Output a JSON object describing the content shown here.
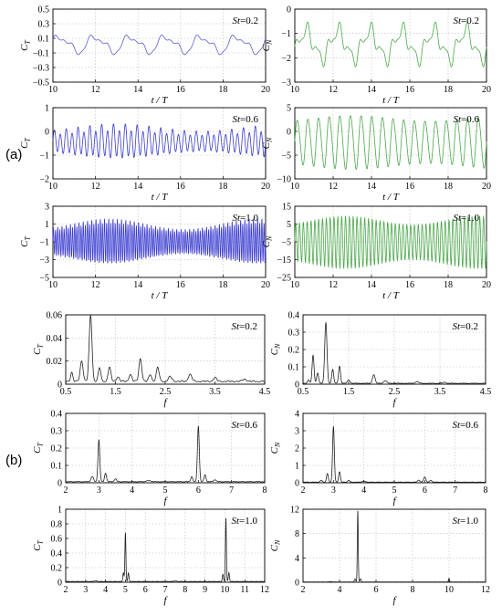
{
  "labels": {
    "a": "(a)",
    "b": "(b)"
  },
  "chart_data": [
    {
      "id": "a1l",
      "type": "line",
      "color": "#5b5bd6",
      "ylabel": "C",
      "ysub": "T",
      "xlabel": "t / T",
      "annotation": {
        "prefix": "St",
        "value": "=0.2"
      },
      "xlim": [
        10,
        20
      ],
      "ylim": [
        -0.5,
        0.5
      ],
      "xticks": [
        10,
        12,
        14,
        16,
        18,
        20
      ],
      "xtick_labels": [
        "10",
        "12",
        "14",
        "16",
        "18",
        "20"
      ],
      "yticks": [
        0.5,
        0.3,
        0.1,
        -0.1,
        -0.3,
        -0.5
      ],
      "ytick_labels": [
        "0.5",
        "0.3",
        "0.1",
        "−0.1",
        "−0.3",
        "−0.5"
      ],
      "signal": {
        "period": 1.6667,
        "baseline": 0.02,
        "components": [
          [
            0.1,
            1,
            0.3
          ],
          [
            0.045,
            2,
            1.2
          ],
          [
            0.02,
            4,
            0.2
          ]
        ],
        "env_amp": 0,
        "env_period": 7
      }
    },
    {
      "id": "a1r",
      "type": "line",
      "color": "#4aa84a",
      "ylabel": "C",
      "ysub": "N",
      "xlabel": "t / T",
      "annotation": {
        "prefix": "St",
        "value": "=0.2"
      },
      "xlim": [
        10,
        20
      ],
      "ylim": [
        -3,
        0
      ],
      "xticks": [
        10,
        12,
        14,
        16,
        18,
        20
      ],
      "xtick_labels": [
        "10",
        "12",
        "14",
        "16",
        "18",
        "20"
      ],
      "yticks": [
        0,
        -1,
        -2,
        -3
      ],
      "ytick_labels": [
        "0",
        "−1",
        "−2",
        "−3"
      ],
      "signal": {
        "period": 1.6667,
        "baseline": -1.45,
        "components": [
          [
            0.55,
            1,
            -0.6
          ],
          [
            0.3,
            3,
            0.4
          ],
          [
            0.12,
            5,
            1.0
          ]
        ],
        "env_amp": 0,
        "env_period": 7
      }
    },
    {
      "id": "a2l",
      "type": "line",
      "color": "#3b3bd0",
      "ylabel": "C",
      "ysub": "T",
      "xlabel": "t / T",
      "annotation": {
        "prefix": "St",
        "value": "=0.6"
      },
      "xlim": [
        10,
        20
      ],
      "ylim": [
        -2,
        1
      ],
      "xticks": [
        10,
        12,
        14,
        16,
        18,
        20
      ],
      "xtick_labels": [
        "10",
        "12",
        "14",
        "16",
        "18",
        "20"
      ],
      "yticks": [
        1,
        0,
        -1,
        -2
      ],
      "ytick_labels": [
        "1",
        "0",
        "−1",
        "−2"
      ],
      "signal": {
        "period": 0.5556,
        "baseline": -0.45,
        "components": [
          [
            0.5,
            2,
            0
          ],
          [
            0.12,
            1,
            0.5
          ]
        ],
        "env_amp": 0.25,
        "env_period": 8
      }
    },
    {
      "id": "a2r",
      "type": "line",
      "color": "#4aa84a",
      "ylabel": "C",
      "ysub": "N",
      "xlabel": "t / T",
      "annotation": {
        "prefix": "St",
        "value": "=0.6"
      },
      "xlim": [
        10,
        20
      ],
      "ylim": [
        -10,
        5
      ],
      "xticks": [
        10,
        12,
        14,
        16,
        18,
        20
      ],
      "xtick_labels": [
        "10",
        "12",
        "14",
        "16",
        "18",
        "20"
      ],
      "yticks": [
        5,
        0,
        -5,
        -10
      ],
      "ytick_labels": [
        "5",
        "0",
        "−5",
        "−10"
      ],
      "signal": {
        "period": 0.5556,
        "baseline": -2.2,
        "components": [
          [
            5.0,
            1,
            0
          ],
          [
            0.4,
            2,
            0.3
          ]
        ],
        "env_amp": 0.12,
        "env_period": 8
      }
    },
    {
      "id": "a3l",
      "type": "line",
      "color": "#3b3bd0",
      "ylabel": "C",
      "ysub": "T",
      "xlabel": "t / T",
      "annotation": {
        "prefix": "St",
        "value": "=1.0"
      },
      "xlim": [
        10,
        20
      ],
      "ylim": [
        -5,
        3
      ],
      "xticks": [
        10,
        12,
        14,
        16,
        18,
        20
      ],
      "xtick_labels": [
        "10",
        "12",
        "14",
        "16",
        "18",
        "20"
      ],
      "yticks": [
        3,
        1,
        -1,
        -3,
        -5
      ],
      "ytick_labels": [
        "3",
        "1",
        "−1",
        "−3",
        "−5"
      ],
      "signal": {
        "period": 1.0,
        "baseline": -1.0,
        "components": [
          [
            1.8,
            10,
            0
          ],
          [
            0.2,
            5,
            0.4
          ]
        ],
        "env_amp": 0.3,
        "env_period": 7
      }
    },
    {
      "id": "a3r",
      "type": "line",
      "color": "#4aa84a",
      "ylabel": "C",
      "ysub": "N",
      "xlabel": "t / T",
      "annotation": {
        "prefix": "St",
        "value": "=1.0"
      },
      "xlim": [
        10,
        20
      ],
      "ylim": [
        -25,
        15
      ],
      "xticks": [
        10,
        12,
        14,
        16,
        18,
        20
      ],
      "xtick_labels": [
        "10",
        "12",
        "14",
        "16",
        "18",
        "20"
      ],
      "yticks": [
        15,
        5,
        -5,
        -15,
        -25
      ],
      "ytick_labels": [
        "15",
        "5",
        "−5",
        "−15",
        "−25"
      ],
      "signal": {
        "period": 1.0,
        "baseline": -5,
        "components": [
          [
            12,
            5,
            0
          ],
          [
            1.0,
            10,
            0.3
          ]
        ],
        "env_amp": 0.2,
        "env_period": 7
      }
    },
    {
      "id": "b1l",
      "type": "line",
      "color": "#222222",
      "ylabel": "C",
      "ysub": "T",
      "xlabel": "f",
      "annotation": {
        "prefix": "St",
        "value": "=0.2"
      },
      "xlim": [
        0.5,
        4.5
      ],
      "ylim": [
        0,
        0.06
      ],
      "xticks": [
        0.5,
        1.5,
        2.5,
        3.5,
        4.5
      ],
      "xtick_labels": [
        "0.5",
        "1.5",
        "2.5",
        "3.5",
        "4.5"
      ],
      "yticks": [
        0.06,
        0.04,
        0.02,
        0
      ],
      "ytick_labels": [
        "0.06",
        "0.04",
        "0.02",
        "0"
      ],
      "peaks": [
        [
          0.62,
          0.008,
          0.03
        ],
        [
          0.82,
          0.018,
          0.04
        ],
        [
          1.0,
          0.057,
          0.04
        ],
        [
          1.18,
          0.012,
          0.035
        ],
        [
          1.38,
          0.012,
          0.04
        ],
        [
          1.55,
          0.004,
          0.04
        ],
        [
          1.8,
          0.006,
          0.04
        ],
        [
          2.0,
          0.02,
          0.04
        ],
        [
          2.2,
          0.006,
          0.04
        ],
        [
          2.35,
          0.012,
          0.04
        ],
        [
          2.6,
          0.004,
          0.05
        ],
        [
          3.0,
          0.006,
          0.05
        ],
        [
          3.5,
          0.003,
          0.05
        ],
        [
          4.1,
          0.002,
          0.05
        ]
      ],
      "floor": 0.002
    },
    {
      "id": "b1r",
      "type": "line",
      "color": "#222222",
      "ylabel": "C",
      "ysub": "N",
      "xlabel": "f",
      "annotation": {
        "prefix": "St",
        "value": "=0.2"
      },
      "xlim": [
        0.5,
        4.5
      ],
      "ylim": [
        0,
        0.4
      ],
      "xticks": [
        0.5,
        1.5,
        2.5,
        3.5,
        4.5
      ],
      "xtick_labels": [
        "0.5",
        "1.5",
        "2.5",
        "3.5",
        "4.5"
      ],
      "yticks": [
        0.4,
        0.3,
        0.2,
        0.1,
        0
      ],
      "ytick_labels": [
        "0.4",
        "0.3",
        "0.2",
        "0.1",
        "0"
      ],
      "peaks": [
        [
          0.62,
          0.02,
          0.03
        ],
        [
          0.72,
          0.16,
          0.03
        ],
        [
          0.82,
          0.06,
          0.03
        ],
        [
          1.0,
          0.35,
          0.035
        ],
        [
          1.15,
          0.08,
          0.03
        ],
        [
          1.3,
          0.1,
          0.03
        ],
        [
          1.5,
          0.02,
          0.04
        ],
        [
          2.05,
          0.05,
          0.04
        ],
        [
          2.3,
          0.015,
          0.05
        ],
        [
          3.0,
          0.01,
          0.05
        ],
        [
          3.6,
          0.006,
          0.05
        ]
      ],
      "floor": 0.004
    },
    {
      "id": "b2l",
      "type": "line",
      "color": "#222222",
      "ylabel": "C",
      "ysub": "T",
      "xlabel": "f",
      "annotation": {
        "prefix": "St",
        "value": "=0.6"
      },
      "xlim": [
        2,
        8
      ],
      "ylim": [
        0,
        0.4
      ],
      "xticks": [
        2,
        3,
        4,
        5,
        6,
        7,
        8
      ],
      "xtick_labels": [
        "2",
        "3",
        "4",
        "5",
        "6",
        "7",
        "8"
      ],
      "yticks": [
        0.4,
        0.3,
        0.2,
        0.1,
        0
      ],
      "ytick_labels": [
        "0.4",
        "0.3",
        "0.2",
        "0.1",
        "0"
      ],
      "peaks": [
        [
          2.8,
          0.03,
          0.05
        ],
        [
          3.0,
          0.24,
          0.04
        ],
        [
          3.2,
          0.05,
          0.04
        ],
        [
          3.5,
          0.015,
          0.05
        ],
        [
          5.8,
          0.03,
          0.04
        ],
        [
          6.0,
          0.32,
          0.04
        ],
        [
          6.2,
          0.04,
          0.04
        ],
        [
          6.5,
          0.012,
          0.05
        ],
        [
          4.5,
          0.006,
          0.1
        ]
      ],
      "floor": 0.005
    },
    {
      "id": "b2r",
      "type": "line",
      "color": "#222222",
      "ylabel": "C",
      "ysub": "N",
      "xlabel": "f",
      "annotation": {
        "prefix": "St",
        "value": "=0.6"
      },
      "xlim": [
        2,
        8
      ],
      "ylim": [
        0,
        4
      ],
      "xticks": [
        2,
        3,
        4,
        5,
        6,
        7,
        8
      ],
      "xtick_labels": [
        "2",
        "3",
        "4",
        "5",
        "6",
        "7",
        "8"
      ],
      "yticks": [
        4,
        3,
        2,
        1,
        0
      ],
      "ytick_labels": [
        "4",
        "3",
        "2",
        "1",
        "0"
      ],
      "peaks": [
        [
          2.6,
          0.1,
          0.05
        ],
        [
          2.8,
          0.5,
          0.04
        ],
        [
          3.0,
          3.2,
          0.04
        ],
        [
          3.2,
          0.6,
          0.04
        ],
        [
          3.5,
          0.1,
          0.05
        ],
        [
          4.0,
          0.05,
          0.08
        ],
        [
          5.8,
          0.12,
          0.05
        ],
        [
          6.0,
          0.3,
          0.05
        ],
        [
          6.2,
          0.1,
          0.05
        ]
      ],
      "floor": 0.03
    },
    {
      "id": "b3l",
      "type": "line",
      "color": "#222222",
      "ylabel": "C",
      "ysub": "T",
      "xlabel": "f",
      "annotation": {
        "prefix": "St",
        "value": "=1.0"
      },
      "xlim": [
        2,
        12
      ],
      "ylim": [
        0,
        1.0
      ],
      "xticks": [
        2,
        3,
        4,
        5,
        6,
        7,
        8,
        9,
        10,
        11,
        12
      ],
      "xtick_labels": [
        "2",
        "3",
        "4",
        "5",
        "6",
        "7",
        "8",
        "9",
        "10",
        "11",
        "12"
      ],
      "yticks": [
        1.0,
        0.8,
        0.6,
        0.4,
        0.2,
        0
      ],
      "ytick_labels": [
        "1",
        "0.8",
        "0.6",
        "0.4",
        "0.2",
        "0"
      ],
      "peaks": [
        [
          4.9,
          0.12,
          0.04
        ],
        [
          5.0,
          0.67,
          0.035
        ],
        [
          5.15,
          0.12,
          0.04
        ],
        [
          9.9,
          0.1,
          0.04
        ],
        [
          10.05,
          0.87,
          0.035
        ],
        [
          10.2,
          0.12,
          0.04
        ],
        [
          3.5,
          0.01,
          0.1
        ],
        [
          7.5,
          0.008,
          0.1
        ]
      ],
      "floor": 0.008
    },
    {
      "id": "b3r",
      "type": "line",
      "color": "#222222",
      "ylabel": "C",
      "ysub": "N",
      "xlabel": "f",
      "annotation": {
        "prefix": "St",
        "value": "=1.0"
      },
      "xlim": [
        2,
        12
      ],
      "ylim": [
        0,
        12
      ],
      "xticks": [
        2,
        4,
        6,
        8,
        10,
        12
      ],
      "xtick_labels": [
        "2",
        "4",
        "6",
        "8",
        "10",
        "12"
      ],
      "yticks": [
        12,
        8,
        4,
        0
      ],
      "ytick_labels": [
        "12",
        "8",
        "4",
        "0"
      ],
      "peaks": [
        [
          5.0,
          11.7,
          0.035
        ],
        [
          4.85,
          0.5,
          0.05
        ],
        [
          5.15,
          0.5,
          0.05
        ],
        [
          10.0,
          0.6,
          0.04
        ],
        [
          3.5,
          0.05,
          0.1
        ]
      ],
      "floor": 0.04
    }
  ]
}
